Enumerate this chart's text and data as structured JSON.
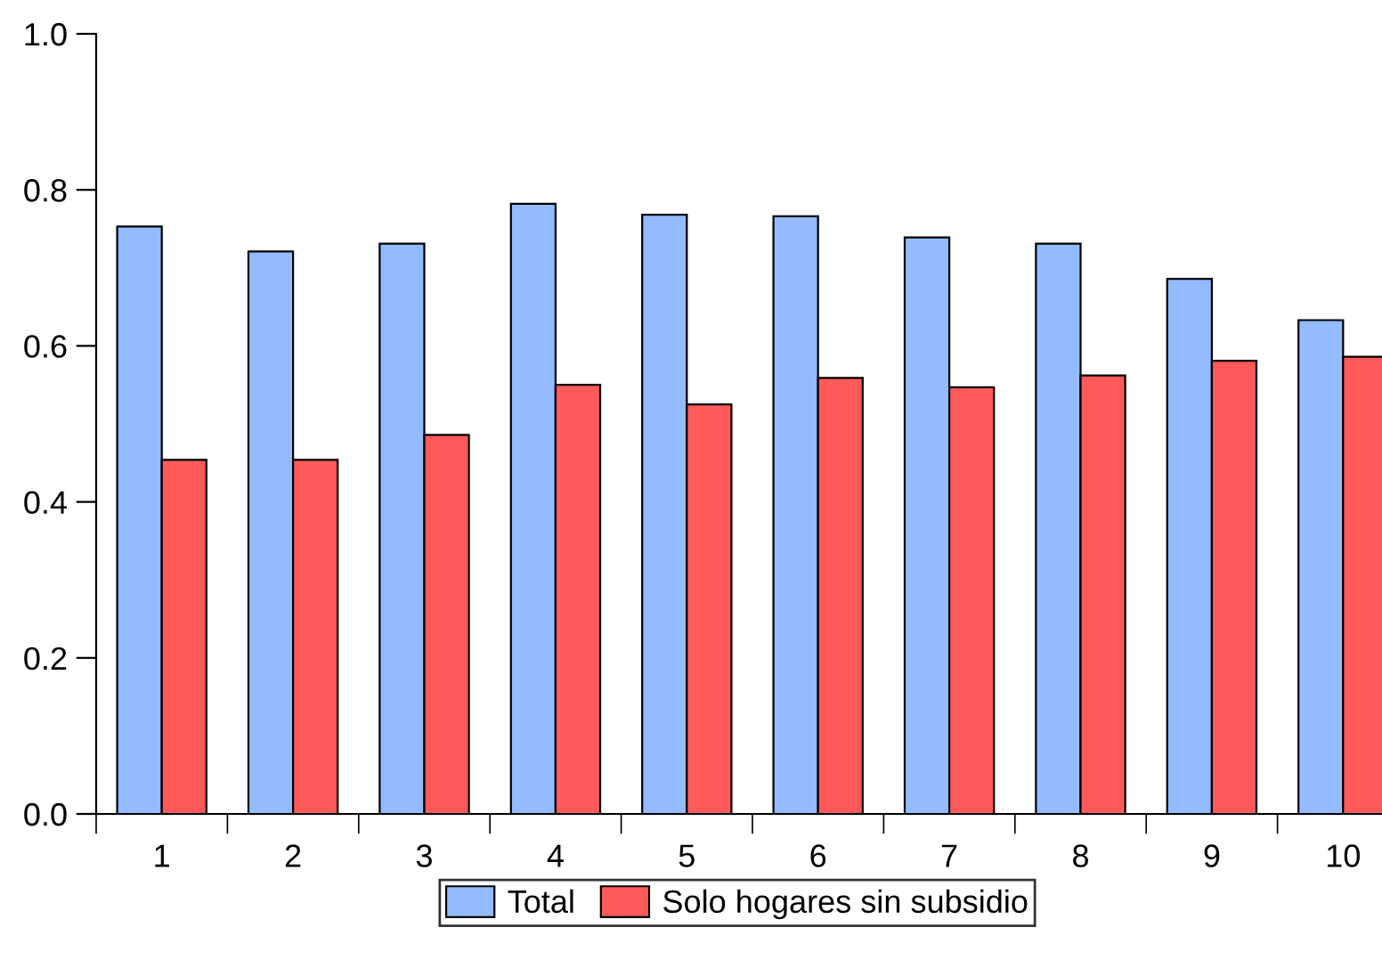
{
  "chart_data": {
    "type": "bar",
    "categories": [
      "1",
      "2",
      "3",
      "4",
      "5",
      "6",
      "7",
      "8",
      "9",
      "10"
    ],
    "series": [
      {
        "name": "Total",
        "color": "#94bbff",
        "values": [
          0.753,
          0.721,
          0.731,
          0.782,
          0.768,
          0.766,
          0.739,
          0.731,
          0.686,
          0.633
        ]
      },
      {
        "name": "Solo hogares sin subsidio",
        "color": "#ff5a5a",
        "values": [
          0.454,
          0.454,
          0.486,
          0.55,
          0.525,
          0.559,
          0.547,
          0.562,
          0.581,
          0.586
        ]
      }
    ],
    "ylim": [
      0,
      1
    ],
    "yticks": [
      {
        "value": 0,
        "label": "0.0"
      },
      {
        "value": 0.2,
        "label": "0.2"
      },
      {
        "value": 0.4,
        "label": "0.4"
      },
      {
        "value": 0.6,
        "label": "0.6"
      },
      {
        "value": 0.8,
        "label": "0.8"
      },
      {
        "value": 1,
        "label": "1.0"
      }
    ],
    "grid": false,
    "legend": "bottom"
  }
}
